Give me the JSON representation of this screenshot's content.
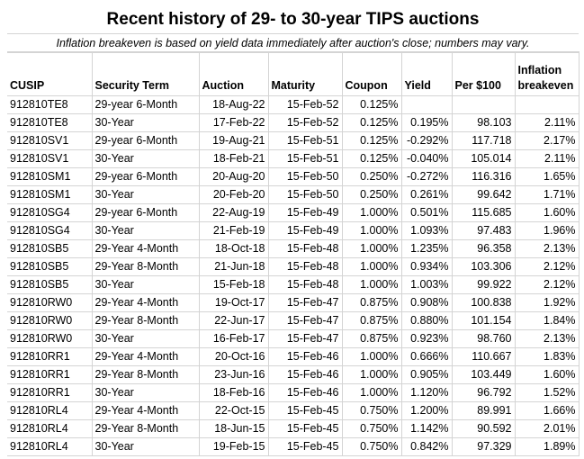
{
  "title": "Recent history of 29- to 30-year TIPS auctions",
  "subtitle": "Inflation breakeven is based on yield data immediately after auction's close; numbers may vary.",
  "columns": [
    "CUSIP",
    "Security Term",
    "Auction",
    "Maturity",
    "Coupon",
    "Yield",
    "Per $100",
    "Inflation breakeven"
  ],
  "rows": [
    [
      "912810TE8",
      "29-year 6-Month",
      "18-Aug-22",
      "15-Feb-52",
      "0.125%",
      "",
      "",
      ""
    ],
    [
      "912810TE8",
      "30-Year",
      "17-Feb-22",
      "15-Feb-52",
      "0.125%",
      "0.195%",
      "98.103",
      "2.11%"
    ],
    [
      "912810SV1",
      "29-year 6-Month",
      "19-Aug-21",
      "15-Feb-51",
      "0.125%",
      "-0.292%",
      "117.718",
      "2.17%"
    ],
    [
      "912810SV1",
      "30-Year",
      "18-Feb-21",
      "15-Feb-51",
      "0.125%",
      "-0.040%",
      "105.014",
      "2.11%"
    ],
    [
      "912810SM1",
      "29-year 6-Month",
      "20-Aug-20",
      "15-Feb-50",
      "0.250%",
      "-0.272%",
      "116.316",
      "1.65%"
    ],
    [
      "912810SM1",
      "30-Year",
      "20-Feb-20",
      "15-Feb-50",
      "0.250%",
      "0.261%",
      "99.642",
      "1.71%"
    ],
    [
      "912810SG4",
      "29-year 6-Month",
      "22-Aug-19",
      "15-Feb-49",
      "1.000%",
      "0.501%",
      "115.685",
      "1.60%"
    ],
    [
      "912810SG4",
      "30-Year",
      "21-Feb-19",
      "15-Feb-49",
      "1.000%",
      "1.093%",
      "97.483",
      "1.96%"
    ],
    [
      "912810SB5",
      "29-Year 4-Month",
      "18-Oct-18",
      "15-Feb-48",
      "1.000%",
      "1.235%",
      "96.358",
      "2.13%"
    ],
    [
      "912810SB5",
      "29-Year 8-Month",
      "21-Jun-18",
      "15-Feb-48",
      "1.000%",
      "0.934%",
      "103.306",
      "2.12%"
    ],
    [
      "912810SB5",
      "30-Year",
      "15-Feb-18",
      "15-Feb-48",
      "1.000%",
      "1.003%",
      "99.922",
      "2.12%"
    ],
    [
      "912810RW0",
      "29-Year 4-Month",
      "19-Oct-17",
      "15-Feb-47",
      "0.875%",
      "0.908%",
      "100.838",
      "1.92%"
    ],
    [
      "912810RW0",
      "29-Year 8-Month",
      "22-Jun-17",
      "15-Feb-47",
      "0.875%",
      "0.880%",
      "101.154",
      "1.84%"
    ],
    [
      "912810RW0",
      "30-Year",
      "16-Feb-17",
      "15-Feb-47",
      "0.875%",
      "0.923%",
      "98.760",
      "2.13%"
    ],
    [
      "912810RR1",
      "29-Year 4-Month",
      "20-Oct-16",
      "15-Feb-46",
      "1.000%",
      "0.666%",
      "110.667",
      "1.83%"
    ],
    [
      "912810RR1",
      "29-Year 8-Month",
      "23-Jun-16",
      "15-Feb-46",
      "1.000%",
      "0.905%",
      "103.449",
      "1.60%"
    ],
    [
      "912810RR1",
      "30-Year",
      "18-Feb-16",
      "15-Feb-46",
      "1.000%",
      "1.120%",
      "96.792",
      "1.52%"
    ],
    [
      "912810RL4",
      "29-Year 4-Month",
      "22-Oct-15",
      "15-Feb-45",
      "0.750%",
      "1.200%",
      "89.991",
      "1.66%"
    ],
    [
      "912810RL4",
      "29-Year 8-Month",
      "18-Jun-15",
      "15-Feb-45",
      "0.750%",
      "1.142%",
      "90.592",
      "2.01%"
    ],
    [
      "912810RL4",
      "30-Year",
      "19-Feb-15",
      "15-Feb-45",
      "0.750%",
      "0.842%",
      "97.329",
      "1.89%"
    ]
  ]
}
